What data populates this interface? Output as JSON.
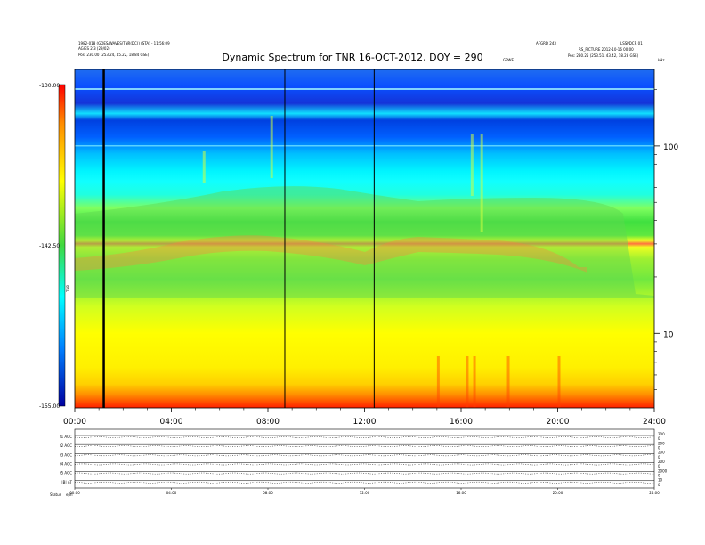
{
  "header": {
    "left_line1": "1982-018 (GOES/WAVES/TNR(DC)) (STA) - 11:56:09",
    "left_line2": "AGIES 2.3 (29/02)",
    "left_line3": "Pos:  230.00 (253.24, 45.22, 18.84 GSE)",
    "right_line1": "AFGRD 243",
    "right_line2": "LSSPDCR 01",
    "right_line3": "RS_PICTURE 2012-10-16 00:00",
    "right_line4": "Pos:  230.25 (253.51, 43.42, 18.28 GSE)",
    "center_small": "GPWE",
    "far_right_small": "kHz"
  },
  "colorbar": {
    "label": "TNR",
    "ticks": [
      "-130.00",
      "-142.50",
      "-155.00"
    ]
  },
  "chart_data": {
    "type": "heatmap",
    "title": "Dynamic Spectrum for TNR 16-OCT-2012, DOY = 290",
    "x_ticks": [
      "00:00",
      "04:00",
      "08:00",
      "12:00",
      "16:00",
      "20:00",
      "24:00"
    ],
    "x_range_hours": [
      0,
      24
    ],
    "y_scale": "log",
    "y_ticks": [
      "100",
      "10"
    ],
    "y_tick_values": [
      100,
      10
    ],
    "y_range_khz": [
      4,
      256
    ],
    "color_scale": "dB, red (-155) to blue (-130)",
    "color_range": [
      -155,
      -130
    ],
    "data_gaps_hours": [
      1.2,
      8.7,
      12.4
    ],
    "stack_panels": [
      {
        "label": "f1 AGC"
      },
      {
        "label": "f2 AGC"
      },
      {
        "label": "f3 AGC"
      },
      {
        "label": "f4 AGC"
      },
      {
        "label": "f5 AGC"
      },
      {
        "label": "|B| nT"
      }
    ],
    "bottom_labels": [
      "Status",
      "eph"
    ],
    "stack_x_ticks": [
      "00:00",
      "04:00",
      "08:00",
      "12:00",
      "16:00",
      "20:00",
      "24:00"
    ],
    "stack_right_ticks": [
      "200",
      "0",
      "200",
      "0",
      "200",
      "0",
      "200",
      "0",
      "2000",
      "0",
      "10",
      "0"
    ]
  }
}
